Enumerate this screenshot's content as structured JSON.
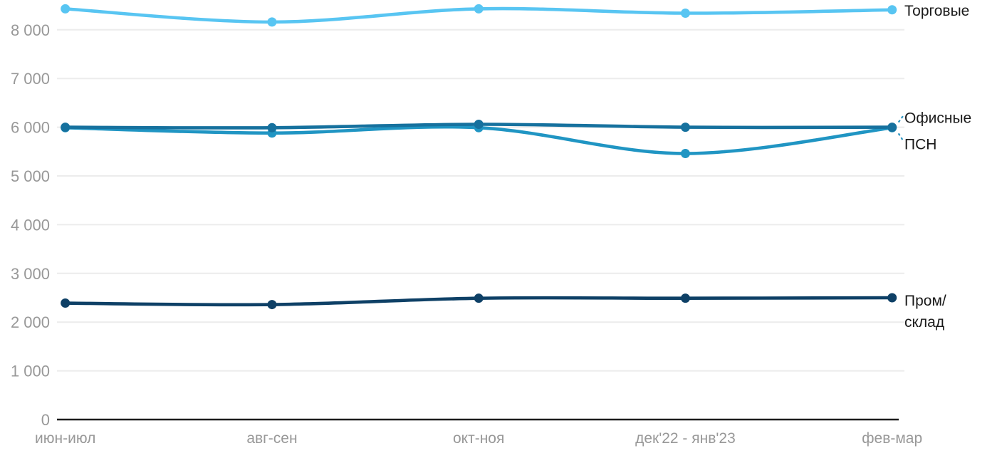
{
  "chart_data": {
    "type": "line",
    "title": "",
    "categories": [
      "июн-июл",
      "авг-сен",
      "окт-ноя",
      "дек'22 - янв'23",
      "фев-мар"
    ],
    "series": [
      {
        "name": "Торговые",
        "color": "#58c5f2",
        "values": [
          8430,
          8160,
          8430,
          8340,
          8410
        ]
      },
      {
        "name": "ПСН",
        "color": "#2095c3",
        "values": [
          5990,
          5880,
          5990,
          5460,
          5990
        ]
      },
      {
        "name": "Офисные",
        "color": "#16719e",
        "values": [
          6000,
          5990,
          6060,
          6000,
          6000
        ]
      },
      {
        "name": "Пром/склад",
        "color": "#0e4066",
        "values": [
          2390,
          2360,
          2490,
          2490,
          2500
        ]
      }
    ],
    "yticks": [
      {
        "v": 0,
        "label": "0"
      },
      {
        "v": 1000,
        "label": "1 000"
      },
      {
        "v": 2000,
        "label": "2 000"
      },
      {
        "v": 3000,
        "label": "3 000"
      },
      {
        "v": 4000,
        "label": "4 000"
      },
      {
        "v": 5000,
        "label": "5 000"
      },
      {
        "v": 6000,
        "label": "6 000"
      },
      {
        "v": 7000,
        "label": "7 000"
      },
      {
        "v": 8000,
        "label": "8 000"
      }
    ],
    "ylim": [
      0,
      8600
    ],
    "grid": true,
    "legend_position": "right-of-line-ends",
    "end_labels": [
      {
        "series": 0,
        "lines": [
          "Торговые"
        ],
        "dy": [
          8
        ],
        "leader": "none"
      },
      {
        "series": 2,
        "lines": [
          "Офисные"
        ],
        "dy": [
          -6
        ],
        "leader": "up"
      },
      {
        "series": 1,
        "lines": [
          "ПСН"
        ],
        "dy": [
          30
        ],
        "leader": "down"
      },
      {
        "series": 3,
        "lines": [
          "Пром/",
          "склад"
        ],
        "dy": [
          11,
          41
        ],
        "leader": "none"
      }
    ],
    "leader_color": "#2a93c0"
  },
  "styles": {
    "background": "#ffffff",
    "grid_color": "#ececec",
    "axis_color": "#1c1c1c",
    "tick_label_color": "#989898",
    "series_label_color": "#1a1a1a"
  }
}
